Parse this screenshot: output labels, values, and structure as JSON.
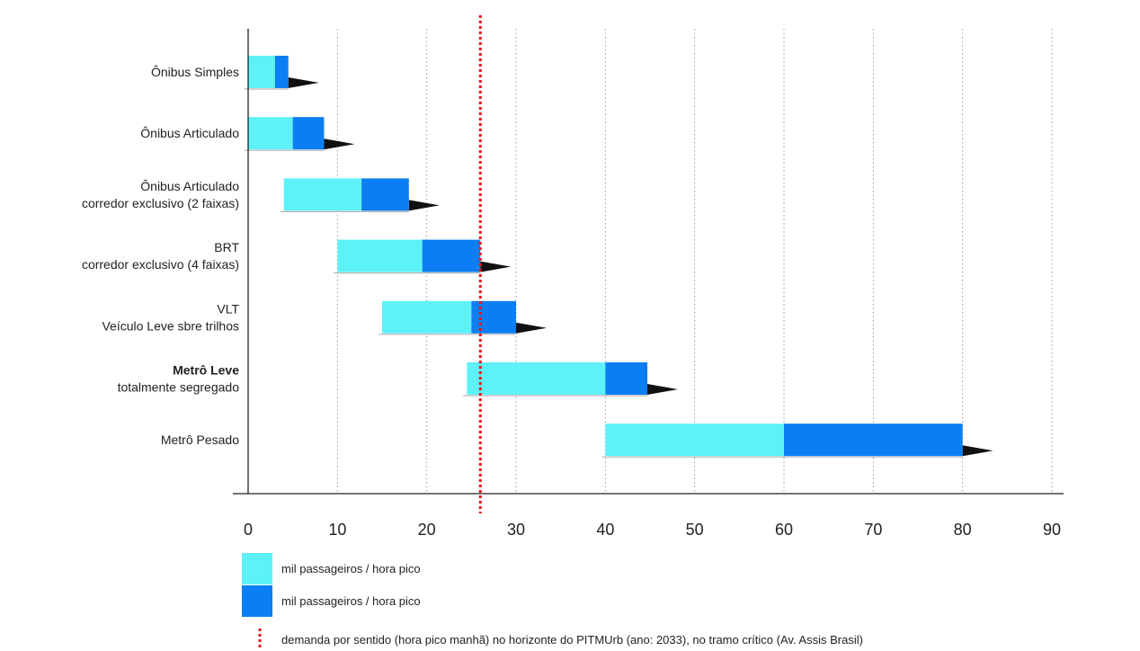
{
  "chart_data": {
    "type": "bar",
    "orientation": "horizontal",
    "stacked": true,
    "categories": [
      {
        "lines": [
          "Ônibus Simples"
        ],
        "bold_first_line": false
      },
      {
        "lines": [
          "Ônibus Articulado"
        ],
        "bold_first_line": false
      },
      {
        "lines": [
          "Ônibus Articulado",
          "corredor exclusivo (2 faixas)"
        ],
        "bold_first_line": false
      },
      {
        "lines": [
          "BRT",
          "corredor exclusivo (4 faixas)"
        ],
        "bold_first_line": false
      },
      {
        "lines": [
          "VLT",
          "Veículo Leve sbre trilhos"
        ],
        "bold_first_line": false
      },
      {
        "lines": [
          "Metrô Leve",
          "totalmente segregado"
        ],
        "bold_first_line": true
      },
      {
        "lines": [
          "Metrô Pesado"
        ],
        "bold_first_line": false
      }
    ],
    "series": [
      {
        "legend": "mil passageiros / hora pico",
        "color": "#5cf2f8",
        "ranges": [
          [
            0,
            3
          ],
          [
            0,
            5
          ],
          [
            4,
            12.7
          ],
          [
            10,
            19.5
          ],
          [
            15,
            25
          ],
          [
            24.5,
            40
          ],
          [
            40,
            60
          ]
        ]
      },
      {
        "legend": "mil passageiros / hora pico",
        "color": "#0a7ef2",
        "ranges": [
          [
            3,
            4.5
          ],
          [
            5,
            8.5
          ],
          [
            12.7,
            18
          ],
          [
            19.5,
            26
          ],
          [
            25,
            30
          ],
          [
            40,
            44.7
          ],
          [
            60,
            80
          ]
        ]
      }
    ],
    "reference_line": {
      "value": 26,
      "color": "#e8151b",
      "legend": "demanda por sentido (hora pico manhã) no horizonte do PITMUrb (ano: 2033), no tramo crítico (Av. Assis Brasil)"
    },
    "x_ticks": [
      0,
      10,
      20,
      30,
      40,
      50,
      60,
      70,
      80,
      90
    ],
    "xlim": [
      0,
      90
    ],
    "grid": "vertical dotted",
    "legend_placement": "bottom-left",
    "title": "",
    "xlabel": "",
    "ylabel": ""
  }
}
